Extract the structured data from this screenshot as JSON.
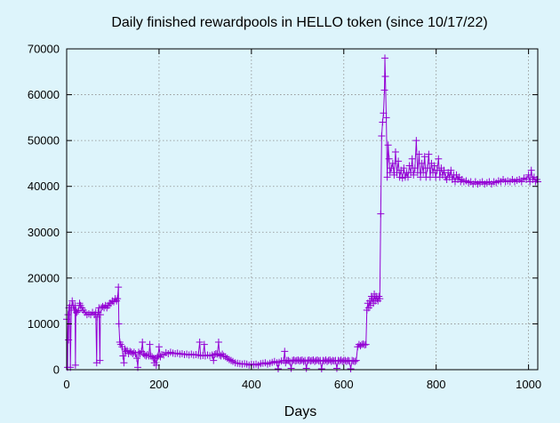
{
  "chart_data": {
    "type": "line",
    "title": "Daily finished rewardpools in HELLO token (since 10/17/22)",
    "xlabel": "Days",
    "ylabel": "",
    "xlim": [
      0,
      1020
    ],
    "ylim": [
      0,
      70000
    ],
    "x_ticks": [
      0,
      200,
      400,
      600,
      800,
      1000
    ],
    "y_ticks": [
      0,
      10000,
      20000,
      30000,
      40000,
      50000,
      60000,
      70000
    ],
    "grid": true,
    "marker": "+",
    "color": "#9400d3",
    "background": "#ddf4fb",
    "series": [
      {
        "points": [
          [
            0,
            11000
          ],
          [
            2,
            500
          ],
          [
            3,
            12000
          ],
          [
            4,
            6500
          ],
          [
            5,
            13500
          ],
          [
            7,
            14000
          ],
          [
            8,
            500
          ],
          [
            10,
            13000
          ],
          [
            12,
            15000
          ],
          [
            14,
            14000
          ],
          [
            16,
            13000
          ],
          [
            18,
            14000
          ],
          [
            19,
            1000
          ],
          [
            20,
            13000
          ],
          [
            22,
            12500
          ],
          [
            25,
            12800
          ],
          [
            28,
            14500
          ],
          [
            30,
            14000
          ],
          [
            33,
            13500
          ],
          [
            36,
            13000
          ],
          [
            40,
            12500
          ],
          [
            44,
            12000
          ],
          [
            48,
            12200
          ],
          [
            52,
            12000
          ],
          [
            56,
            12500
          ],
          [
            60,
            12000
          ],
          [
            63,
            12500
          ],
          [
            65,
            1500
          ],
          [
            66,
            11500
          ],
          [
            68,
            12500
          ],
          [
            70,
            13500
          ],
          [
            72,
            2000
          ],
          [
            73,
            12000
          ],
          [
            75,
            13500
          ],
          [
            78,
            13800
          ],
          [
            81,
            13500
          ],
          [
            84,
            14000
          ],
          [
            87,
            13500
          ],
          [
            90,
            14000
          ],
          [
            93,
            14500
          ],
          [
            96,
            14500
          ],
          [
            99,
            15000
          ],
          [
            102,
            14800
          ],
          [
            105,
            15500
          ],
          [
            108,
            15000
          ],
          [
            110,
            15500
          ],
          [
            112,
            18000
          ],
          [
            113,
            10000
          ],
          [
            115,
            6000
          ],
          [
            117,
            5500
          ],
          [
            120,
            5000
          ],
          [
            122,
            3000
          ],
          [
            124,
            1500
          ],
          [
            126,
            4500
          ],
          [
            128,
            4000
          ],
          [
            131,
            4200
          ],
          [
            134,
            3500
          ],
          [
            137,
            4000
          ],
          [
            140,
            3800
          ],
          [
            143,
            3500
          ],
          [
            146,
            3800
          ],
          [
            149,
            3500
          ],
          [
            152,
            2500
          ],
          [
            154,
            500
          ],
          [
            156,
            3800
          ],
          [
            159,
            3500
          ],
          [
            162,
            4000
          ],
          [
            164,
            6000
          ],
          [
            166,
            3500
          ],
          [
            169,
            3200
          ],
          [
            172,
            3000
          ],
          [
            175,
            3300
          ],
          [
            178,
            3000
          ],
          [
            180,
            5500
          ],
          [
            182,
            3000
          ],
          [
            185,
            2800
          ],
          [
            188,
            2500
          ],
          [
            190,
            1500
          ],
          [
            192,
            2500
          ],
          [
            194,
            1000
          ],
          [
            196,
            2700
          ],
          [
            198,
            3000
          ],
          [
            200,
            5000
          ],
          [
            203,
            2800
          ],
          [
            206,
            3300
          ],
          [
            210,
            3200
          ],
          [
            215,
            3700
          ],
          [
            220,
            3500
          ],
          [
            225,
            3800
          ],
          [
            230,
            3600
          ],
          [
            235,
            3500
          ],
          [
            240,
            3600
          ],
          [
            245,
            3400
          ],
          [
            250,
            3500
          ],
          [
            255,
            3300
          ],
          [
            260,
            3400
          ],
          [
            265,
            3200
          ],
          [
            270,
            3400
          ],
          [
            275,
            3200
          ],
          [
            280,
            3300
          ],
          [
            285,
            3200
          ],
          [
            288,
            6000
          ],
          [
            290,
            3000
          ],
          [
            295,
            3100
          ],
          [
            298,
            5500
          ],
          [
            300,
            3000
          ],
          [
            305,
            3200
          ],
          [
            310,
            3000
          ],
          [
            315,
            3200
          ],
          [
            318,
            2000
          ],
          [
            320,
            3300
          ],
          [
            323,
            3500
          ],
          [
            326,
            3400
          ],
          [
            329,
            6000
          ],
          [
            331,
            3200
          ],
          [
            334,
            3000
          ],
          [
            337,
            3400
          ],
          [
            340,
            3000
          ],
          [
            344,
            2800
          ],
          [
            348,
            2500
          ],
          [
            352,
            2200
          ],
          [
            356,
            2000
          ],
          [
            360,
            1800
          ],
          [
            365,
            1500
          ],
          [
            370,
            1400
          ],
          [
            375,
            1300
          ],
          [
            380,
            1200
          ],
          [
            385,
            1300
          ],
          [
            390,
            1200
          ],
          [
            395,
            1000
          ],
          [
            400,
            1200
          ],
          [
            405,
            1100
          ],
          [
            410,
            1200
          ],
          [
            415,
            1000
          ],
          [
            420,
            1300
          ],
          [
            425,
            1400
          ],
          [
            430,
            1500
          ],
          [
            435,
            1200
          ],
          [
            440,
            1400
          ],
          [
            445,
            1600
          ],
          [
            450,
            1800
          ],
          [
            455,
            1500
          ],
          [
            458,
            200
          ],
          [
            460,
            1600
          ],
          [
            465,
            1900
          ],
          [
            470,
            2000
          ],
          [
            472,
            4000
          ],
          [
            474,
            1500
          ],
          [
            477,
            2000
          ],
          [
            480,
            2000
          ],
          [
            483,
            1800
          ],
          [
            486,
            300
          ],
          [
            489,
            2000
          ],
          [
            492,
            2100
          ],
          [
            495,
            1900
          ],
          [
            498,
            2000
          ],
          [
            501,
            2100
          ],
          [
            504,
            1900
          ],
          [
            507,
            2000
          ],
          [
            510,
            2100
          ],
          [
            513,
            1800
          ],
          [
            516,
            2000
          ],
          [
            519,
            300
          ],
          [
            522,
            2000
          ],
          [
            525,
            2100
          ],
          [
            528,
            1900
          ],
          [
            531,
            2000
          ],
          [
            534,
            2100
          ],
          [
            537,
            1800
          ],
          [
            540,
            2000
          ],
          [
            543,
            2100
          ],
          [
            546,
            1900
          ],
          [
            549,
            2000
          ],
          [
            552,
            200
          ],
          [
            555,
            2000
          ],
          [
            558,
            1900
          ],
          [
            561,
            2100
          ],
          [
            564,
            1800
          ],
          [
            567,
            2000
          ],
          [
            570,
            2100
          ],
          [
            573,
            1800
          ],
          [
            576,
            2000
          ],
          [
            579,
            1900
          ],
          [
            582,
            2000
          ],
          [
            585,
            300
          ],
          [
            588,
            2000
          ],
          [
            591,
            1900
          ],
          [
            594,
            2100
          ],
          [
            597,
            1800
          ],
          [
            600,
            2000
          ],
          [
            603,
            2000
          ],
          [
            606,
            1800
          ],
          [
            609,
            2000
          ],
          [
            612,
            1900
          ],
          [
            615,
            200
          ],
          [
            618,
            2000
          ],
          [
            621,
            1900
          ],
          [
            624,
            1800
          ],
          [
            627,
            2000
          ],
          [
            630,
            5000
          ],
          [
            633,
            5500
          ],
          [
            636,
            5200
          ],
          [
            639,
            5500
          ],
          [
            642,
            5600
          ],
          [
            645,
            5400
          ],
          [
            648,
            5500
          ],
          [
            650,
            13000
          ],
          [
            652,
            14500
          ],
          [
            654,
            13500
          ],
          [
            656,
            15000
          ],
          [
            658,
            14000
          ],
          [
            660,
            16000
          ],
          [
            662,
            15500
          ],
          [
            664,
            14500
          ],
          [
            666,
            16500
          ],
          [
            668,
            15000
          ],
          [
            670,
            16000
          ],
          [
            672,
            15500
          ],
          [
            674,
            15000
          ],
          [
            676,
            16000
          ],
          [
            678,
            15500
          ],
          [
            680,
            34000
          ],
          [
            682,
            51000
          ],
          [
            684,
            54000
          ],
          [
            686,
            56000
          ],
          [
            688,
            61000
          ],
          [
            689,
            68000
          ],
          [
            690,
            64000
          ],
          [
            692,
            55000
          ],
          [
            694,
            42000
          ],
          [
            696,
            49000
          ],
          [
            698,
            46000
          ],
          [
            700,
            43000
          ],
          [
            703,
            44000
          ],
          [
            706,
            45000
          ],
          [
            709,
            42500
          ],
          [
            712,
            47500
          ],
          [
            715,
            43000
          ],
          [
            718,
            45500
          ],
          [
            721,
            42000
          ],
          [
            724,
            43500
          ],
          [
            727,
            41800
          ],
          [
            730,
            44000
          ],
          [
            733,
            42000
          ],
          [
            736,
            43000
          ],
          [
            739,
            42000
          ],
          [
            742,
            44500
          ],
          [
            745,
            43000
          ],
          [
            748,
            46000
          ],
          [
            751,
            42500
          ],
          [
            754,
            44000
          ],
          [
            757,
            50000
          ],
          [
            760,
            43000
          ],
          [
            763,
            47000
          ],
          [
            766,
            42000
          ],
          [
            769,
            45000
          ],
          [
            772,
            43000
          ],
          [
            775,
            46500
          ],
          [
            778,
            42000
          ],
          [
            781,
            44000
          ],
          [
            784,
            47000
          ],
          [
            787,
            42000
          ],
          [
            790,
            45000
          ],
          [
            793,
            43000
          ],
          [
            796,
            44500
          ],
          [
            799,
            42000
          ],
          [
            802,
            43500
          ],
          [
            805,
            46000
          ],
          [
            808,
            42000
          ],
          [
            811,
            44000
          ],
          [
            814,
            42500
          ],
          [
            817,
            43500
          ],
          [
            820,
            42000
          ],
          [
            823,
            41500
          ],
          [
            826,
            43000
          ],
          [
            829,
            42000
          ],
          [
            832,
            43500
          ],
          [
            835,
            41500
          ],
          [
            838,
            42500
          ],
          [
            841,
            41000
          ],
          [
            844,
            42500
          ],
          [
            847,
            41500
          ],
          [
            850,
            42000
          ],
          [
            853,
            41000
          ],
          [
            856,
            41500
          ],
          [
            860,
            41000
          ],
          [
            865,
            41200
          ],
          [
            870,
            40800
          ],
          [
            875,
            41000
          ],
          [
            880,
            40500
          ],
          [
            885,
            41000
          ],
          [
            890,
            40500
          ],
          [
            895,
            40800
          ],
          [
            900,
            41000
          ],
          [
            905,
            40500
          ],
          [
            910,
            40800
          ],
          [
            915,
            41000
          ],
          [
            920,
            40500
          ],
          [
            925,
            41000
          ],
          [
            930,
            40800
          ],
          [
            935,
            41200
          ],
          [
            940,
            41000
          ],
          [
            945,
            41500
          ],
          [
            950,
            41000
          ],
          [
            955,
            41200
          ],
          [
            960,
            41000
          ],
          [
            965,
            41500
          ],
          [
            970,
            41000
          ],
          [
            975,
            41300
          ],
          [
            980,
            41500
          ],
          [
            985,
            41000
          ],
          [
            990,
            41800
          ],
          [
            995,
            41500
          ],
          [
            1000,
            42500
          ],
          [
            1003,
            41000
          ],
          [
            1006,
            43500
          ],
          [
            1009,
            41500
          ],
          [
            1012,
            42000
          ],
          [
            1015,
            41000
          ],
          [
            1018,
            41500
          ],
          [
            1020,
            41000
          ]
        ]
      }
    ]
  }
}
